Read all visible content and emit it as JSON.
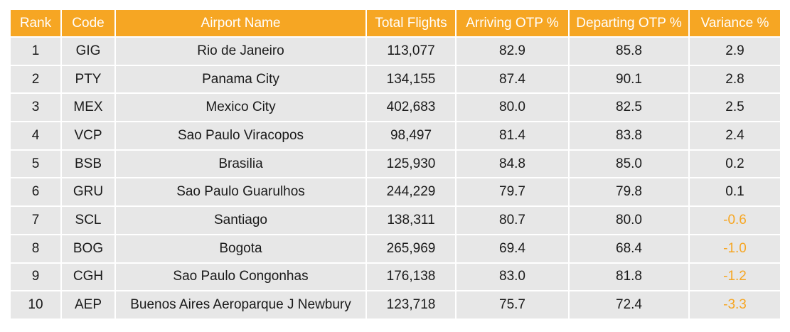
{
  "table": {
    "headers": [
      "Rank",
      "Code",
      "Airport Name",
      "Total Flights",
      "Arriving OTP %",
      "Departing OTP %",
      "Variance %"
    ],
    "rows": [
      [
        "1",
        "GIG",
        "Rio de Janeiro",
        "113,077",
        "82.9",
        "85.8",
        "2.9"
      ],
      [
        "2",
        "PTY",
        "Panama City",
        "134,155",
        "87.4",
        "90.1",
        "2.8"
      ],
      [
        "3",
        "MEX",
        "Mexico City",
        "402,683",
        "80.0",
        "82.5",
        "2.5"
      ],
      [
        "4",
        "VCP",
        "Sao Paulo Viracopos",
        "98,497",
        "81.4",
        "83.8",
        "2.4"
      ],
      [
        "5",
        "BSB",
        "Brasilia",
        "125,930",
        "84.8",
        "85.0",
        "0.2"
      ],
      [
        "6",
        "GRU",
        "Sao Paulo Guarulhos",
        "244,229",
        "79.7",
        "79.8",
        "0.1"
      ],
      [
        "7",
        "SCL",
        "Santiago",
        "138,311",
        "80.7",
        "80.0",
        "-0.6"
      ],
      [
        "8",
        "BOG",
        "Bogota",
        "265,969",
        "69.4",
        "68.4",
        "-1.0"
      ],
      [
        "9",
        "CGH",
        "Sao Paulo Congonhas",
        "176,138",
        "83.0",
        "81.8",
        "-1.2"
      ],
      [
        "10",
        "AEP",
        "Buenos Aires Aeroparque J Newbury",
        "123,718",
        "75.7",
        "72.4",
        "-3.3"
      ]
    ]
  },
  "colors": {
    "header_bg": "#F6A623",
    "header_text": "#FFFFFF",
    "cell_bg": "#E7E7E7",
    "negative_variance": "#F6A623"
  }
}
